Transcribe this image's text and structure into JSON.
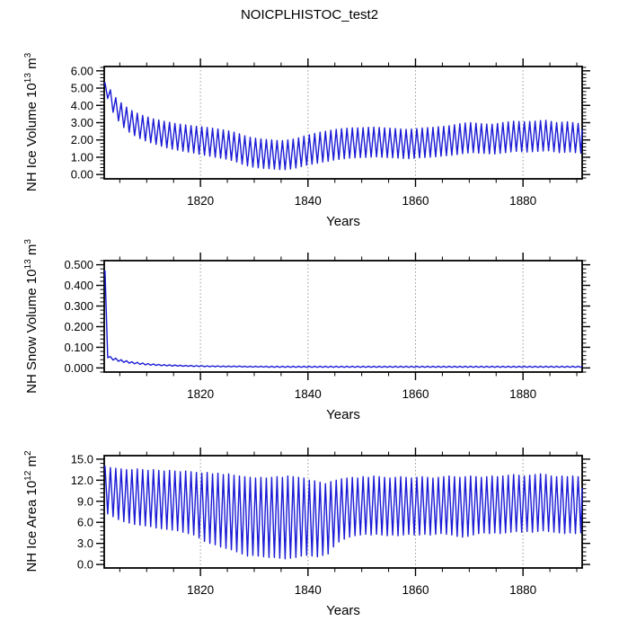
{
  "title": "NOICPLHISTOC_test2",
  "colors": {
    "line": "#1a1ad6",
    "axis": "#000000",
    "grid": "#999999",
    "background": "#ffffff",
    "text": "#000000"
  },
  "chart_data": [
    {
      "type": "line",
      "id": "nh-ice-volume",
      "ylabel_parts": {
        "prefix": "NH Ice Volume 10",
        "sup1": "13",
        "mid": " m",
        "sup2": "3"
      },
      "xlabel": "Years",
      "x_range": [
        1802.1,
        1891.0
      ],
      "y_range": [
        -0.25,
        6.25
      ],
      "x_major_ticks": [
        1820,
        1840,
        1860,
        1880
      ],
      "x_tick_labels": [
        "1820",
        "1840",
        "1860",
        "1880"
      ],
      "x_minor_step": 5,
      "y_major_ticks": [
        0,
        1,
        2,
        3,
        4,
        5,
        6
      ],
      "y_tick_labels": [
        "0.00",
        "1.00",
        "2.00",
        "3.00",
        "4.00",
        "5.00",
        "6.00"
      ],
      "y_minor_step": 0.2,
      "grid": "x-major-dotted",
      "legend": "none",
      "series_mode": "annual-envelope",
      "years_start": 1802,
      "peaks": [
        5.3,
        4.9,
        4.45,
        4.15,
        3.9,
        3.7,
        3.55,
        3.42,
        3.32,
        3.22,
        3.15,
        3.08,
        3.02,
        2.96,
        2.91,
        2.87,
        2.83,
        2.79,
        2.76,
        2.72,
        2.68,
        2.64,
        2.58,
        2.52,
        2.45,
        2.35,
        2.24,
        2.15,
        2.1,
        2.06,
        2.03,
        2.0,
        1.97,
        1.96,
        2.0,
        2.05,
        2.12,
        2.22,
        2.3,
        2.38,
        2.45,
        2.5,
        2.56,
        2.61,
        2.65,
        2.68,
        2.7,
        2.7,
        2.71,
        2.73,
        2.74,
        2.72,
        2.7,
        2.68,
        2.66,
        2.63,
        2.61,
        2.63,
        2.66,
        2.69,
        2.71,
        2.73,
        2.76,
        2.79,
        2.82,
        2.88,
        2.94,
        2.98,
        3.0,
        2.97,
        2.94,
        2.92,
        2.91,
        2.95,
        3.0,
        3.05,
        3.09,
        3.07,
        3.05,
        3.07,
        3.09,
        3.12,
        3.14,
        3.07,
        3.0,
        3.03,
        3.05,
        3.0,
        2.96
      ],
      "troughs": [
        4.4,
        3.6,
        3.1,
        2.72,
        2.45,
        2.25,
        2.08,
        1.95,
        1.84,
        1.74,
        1.64,
        1.55,
        1.47,
        1.41,
        1.35,
        1.3,
        1.25,
        1.18,
        1.12,
        1.06,
        1.0,
        0.95,
        0.89,
        0.82,
        0.72,
        0.6,
        0.5,
        0.43,
        0.39,
        0.36,
        0.34,
        0.31,
        0.29,
        0.28,
        0.32,
        0.38,
        0.46,
        0.54,
        0.6,
        0.66,
        0.72,
        0.77,
        0.83,
        0.88,
        0.92,
        0.95,
        0.97,
        0.98,
        0.99,
        1.01,
        1.02,
        1.0,
        0.98,
        0.97,
        0.95,
        0.93,
        0.92,
        0.94,
        0.97,
        0.99,
        1.01,
        1.03,
        1.06,
        1.09,
        1.12,
        1.16,
        1.21,
        1.25,
        1.27,
        1.24,
        1.22,
        1.2,
        1.19,
        1.23,
        1.27,
        1.31,
        1.34,
        1.32,
        1.3,
        1.32,
        1.34,
        1.36,
        1.38,
        1.32,
        1.27,
        1.29,
        1.31,
        1.27,
        1.24
      ]
    },
    {
      "type": "line",
      "id": "nh-snow-volume",
      "ylabel_parts": {
        "prefix": "NH Snow Volume 10",
        "sup1": "13",
        "mid": " m",
        "sup2": "3"
      },
      "xlabel": "Years",
      "x_range": [
        1802.1,
        1891.0
      ],
      "y_range": [
        -0.02,
        0.52
      ],
      "x_major_ticks": [
        1820,
        1840,
        1860,
        1880
      ],
      "x_tick_labels": [
        "1820",
        "1840",
        "1860",
        "1880"
      ],
      "x_minor_step": 5,
      "y_major_ticks": [
        0,
        0.1,
        0.2,
        0.3,
        0.4,
        0.5
      ],
      "y_tick_labels": [
        "0.000",
        "0.100",
        "0.200",
        "0.300",
        "0.400",
        "0.500"
      ],
      "y_minor_step": 0.02,
      "grid": "x-major-dotted",
      "legend": "none",
      "series_mode": "annual-envelope",
      "years_start": 1802,
      "peaks": [
        0.47,
        0.055,
        0.047,
        0.04,
        0.035,
        0.03,
        0.027,
        0.024,
        0.021,
        0.019,
        0.017,
        0.016,
        0.015,
        0.014,
        0.013,
        0.012,
        0.012,
        0.011,
        0.011,
        0.01,
        0.01,
        0.01,
        0.009,
        0.009,
        0.009,
        0.009,
        0.008,
        0.008,
        0.008,
        0.008,
        0.008,
        0.008,
        0.008,
        0.008,
        0.008,
        0.008,
        0.008,
        0.008,
        0.008,
        0.008,
        0.008,
        0.008,
        0.008,
        0.008,
        0.008,
        0.008,
        0.008,
        0.008,
        0.008,
        0.008,
        0.008,
        0.008,
        0.008,
        0.008,
        0.008,
        0.008,
        0.008,
        0.008,
        0.008,
        0.008,
        0.008,
        0.008,
        0.008,
        0.008,
        0.008,
        0.008,
        0.008,
        0.008,
        0.008,
        0.008,
        0.008,
        0.008,
        0.008,
        0.008,
        0.008,
        0.008,
        0.008,
        0.008,
        0.008,
        0.008,
        0.008,
        0.008,
        0.008,
        0.008,
        0.008,
        0.008,
        0.008,
        0.008,
        0.008
      ],
      "troughs": [
        0.05,
        0.038,
        0.032,
        0.027,
        0.023,
        0.02,
        0.017,
        0.015,
        0.013,
        0.012,
        0.011,
        0.01,
        0.009,
        0.009,
        0.008,
        0.008,
        0.007,
        0.007,
        0.006,
        0.006,
        0.006,
        0.005,
        0.005,
        0.005,
        0.005,
        0.005,
        0.004,
        0.004,
        0.004,
        0.004,
        0.003,
        0.003,
        0.003,
        0.003,
        0.003,
        0.003,
        0.003,
        0.003,
        0.003,
        0.003,
        0.003,
        0.003,
        0.003,
        0.003,
        0.003,
        0.003,
        0.003,
        0.003,
        0.003,
        0.003,
        0.003,
        0.003,
        0.003,
        0.003,
        0.003,
        0.003,
        0.003,
        0.003,
        0.003,
        0.003,
        0.003,
        0.003,
        0.003,
        0.003,
        0.003,
        0.003,
        0.003,
        0.003,
        0.003,
        0.003,
        0.003,
        0.003,
        0.003,
        0.003,
        0.003,
        0.003,
        0.003,
        0.003,
        0.003,
        0.003,
        0.003,
        0.003,
        0.003,
        0.003,
        0.003,
        0.003,
        0.003,
        0.003,
        0.003
      ]
    },
    {
      "type": "line",
      "id": "nh-ice-area",
      "ylabel_parts": {
        "prefix": "NH Ice Area 10",
        "sup1": "12",
        "mid": " m",
        "sup2": "2"
      },
      "xlabel": "Years",
      "x_range": [
        1802.1,
        1891.0
      ],
      "y_range": [
        -0.5,
        15.5
      ],
      "x_major_ticks": [
        1820,
        1840,
        1860,
        1880
      ],
      "x_tick_labels": [
        "1820",
        "1840",
        "1860",
        "1880"
      ],
      "x_minor_step": 5,
      "y_major_ticks": [
        0,
        3,
        6,
        9,
        12,
        15
      ],
      "y_tick_labels": [
        "0.0",
        "3.0",
        "6.0",
        "9.0",
        "12.0",
        "15.0"
      ],
      "y_minor_step": 0.6,
      "grid": "x-major-dotted",
      "legend": "none",
      "series_mode": "annual-envelope",
      "years_start": 1802,
      "peaks": [
        14.0,
        13.8,
        13.7,
        13.6,
        13.5,
        13.5,
        13.6,
        13.5,
        13.4,
        13.5,
        13.4,
        13.3,
        13.4,
        13.3,
        13.2,
        13.3,
        13.2,
        13.1,
        13.0,
        13.1,
        12.9,
        13.0,
        12.8,
        12.9,
        12.7,
        12.6,
        12.5,
        12.4,
        12.3,
        12.4,
        12.3,
        12.4,
        12.5,
        12.4,
        12.6,
        12.5,
        12.4,
        12.3,
        12.0,
        11.9,
        11.7,
        11.5,
        11.8,
        12.0,
        12.2,
        12.3,
        12.4,
        12.3,
        12.5,
        12.4,
        12.6,
        12.5,
        12.4,
        12.3,
        12.4,
        12.5,
        12.4,
        12.3,
        12.4,
        12.5,
        12.4,
        12.3,
        12.4,
        12.5,
        12.6,
        12.5,
        12.4,
        12.5,
        12.6,
        12.5,
        12.4,
        12.5,
        12.6,
        12.5,
        12.6,
        12.7,
        12.8,
        12.7,
        12.6,
        12.7,
        12.8,
        12.9,
        12.8,
        12.6,
        12.5,
        12.6,
        12.5,
        12.6,
        12.5
      ],
      "troughs": [
        7.2,
        6.8,
        6.4,
        6.1,
        5.9,
        5.7,
        5.6,
        5.5,
        5.4,
        5.2,
        5.1,
        5.0,
        4.9,
        4.8,
        4.6,
        4.4,
        4.2,
        3.8,
        3.3,
        3.0,
        2.8,
        2.5,
        2.3,
        2.1,
        1.8,
        1.5,
        1.2,
        1.3,
        1.2,
        1.1,
        1.0,
        1.0,
        0.9,
        0.8,
        0.9,
        1.0,
        1.2,
        1.3,
        1.2,
        1.1,
        1.3,
        1.5,
        2.5,
        3.2,
        3.6,
        3.9,
        4.1,
        4.2,
        4.3,
        4.2,
        4.3,
        4.2,
        4.1,
        4.2,
        4.1,
        4.2,
        4.3,
        4.2,
        4.2,
        4.3,
        4.2,
        4.3,
        4.4,
        4.3,
        4.2,
        4.0,
        3.9,
        4.0,
        4.2,
        4.4,
        4.5,
        4.4,
        4.5,
        4.4,
        4.5,
        4.6,
        4.7,
        4.6,
        4.7,
        4.6,
        4.7,
        4.8,
        4.7,
        4.6,
        4.5,
        4.4,
        4.5,
        4.4,
        4.5
      ]
    }
  ]
}
